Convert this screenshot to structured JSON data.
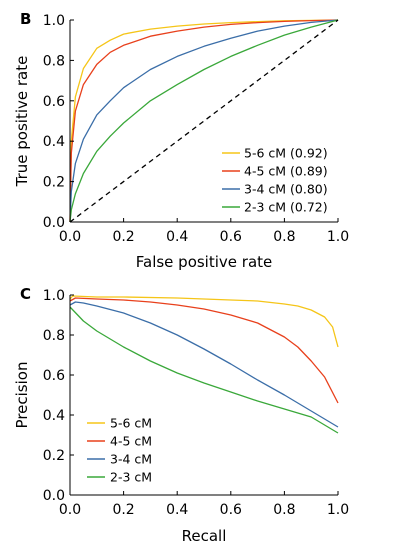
{
  "chart_data": [
    {
      "type": "line",
      "panel_label": "B",
      "xlabel": "False positive rate",
      "ylabel": "True positive rate",
      "xlim": [
        0,
        1
      ],
      "ylim": [
        0,
        1
      ],
      "xticks": [
        "0.0",
        "0.2",
        "0.4",
        "0.6",
        "0.8",
        "1.0"
      ],
      "yticks": [
        "0.0",
        "0.2",
        "0.4",
        "0.6",
        "0.8",
        "1.0"
      ],
      "grid": false,
      "legend": "bottom-right",
      "diagonal_reference": true,
      "series": [
        {
          "name": "5-6 cM (0.92)",
          "color": "#f5c518",
          "x": [
            0,
            0.005,
            0.02,
            0.05,
            0.1,
            0.15,
            0.2,
            0.3,
            0.4,
            0.5,
            0.6,
            0.7,
            0.8,
            0.9,
            1.0
          ],
          "y": [
            0,
            0.4,
            0.62,
            0.76,
            0.86,
            0.9,
            0.93,
            0.955,
            0.97,
            0.98,
            0.987,
            0.992,
            0.996,
            0.998,
            1.0
          ]
        },
        {
          "name": "4-5 cM (0.89)",
          "color": "#e8401c",
          "x": [
            0,
            0.005,
            0.02,
            0.05,
            0.1,
            0.15,
            0.2,
            0.3,
            0.4,
            0.5,
            0.6,
            0.7,
            0.8,
            0.9,
            1.0
          ],
          "y": [
            0,
            0.34,
            0.55,
            0.68,
            0.78,
            0.84,
            0.875,
            0.92,
            0.945,
            0.965,
            0.978,
            0.987,
            0.993,
            0.997,
            1.0
          ]
        },
        {
          "name": "3-4 cM (0.80)",
          "color": "#3b6ea8",
          "x": [
            0,
            0.005,
            0.02,
            0.05,
            0.1,
            0.15,
            0.2,
            0.3,
            0.4,
            0.5,
            0.6,
            0.7,
            0.8,
            0.9,
            1.0
          ],
          "y": [
            0,
            0.15,
            0.29,
            0.41,
            0.53,
            0.6,
            0.665,
            0.755,
            0.82,
            0.87,
            0.91,
            0.945,
            0.97,
            0.988,
            1.0
          ]
        },
        {
          "name": "2-3 cM (0.72)",
          "color": "#3aa83a",
          "x": [
            0,
            0.005,
            0.02,
            0.05,
            0.1,
            0.15,
            0.2,
            0.3,
            0.4,
            0.5,
            0.6,
            0.7,
            0.8,
            0.9,
            1.0
          ],
          "y": [
            0,
            0.06,
            0.14,
            0.24,
            0.35,
            0.425,
            0.49,
            0.6,
            0.68,
            0.755,
            0.82,
            0.875,
            0.925,
            0.965,
            1.0
          ]
        }
      ]
    },
    {
      "type": "line",
      "panel_label": "C",
      "xlabel": "Recall",
      "ylabel": "Precision",
      "xlim": [
        0,
        1
      ],
      "ylim": [
        0,
        1
      ],
      "xticks": [
        "0.0",
        "0.2",
        "0.4",
        "0.6",
        "0.8",
        "1.0"
      ],
      "yticks": [
        "0.0",
        "0.2",
        "0.4",
        "0.6",
        "0.8",
        "1.0"
      ],
      "grid": false,
      "legend": "bottom-left",
      "series": [
        {
          "name": "5-6 cM",
          "color": "#f5c518",
          "x": [
            0,
            0.01,
            0.1,
            0.2,
            0.4,
            0.6,
            0.7,
            0.8,
            0.85,
            0.9,
            0.95,
            0.98,
            1.0
          ],
          "y": [
            0.98,
            0.995,
            0.99,
            0.99,
            0.985,
            0.975,
            0.97,
            0.955,
            0.945,
            0.925,
            0.89,
            0.84,
            0.74
          ]
        },
        {
          "name": "4-5 cM",
          "color": "#e8401c",
          "x": [
            0,
            0.02,
            0.1,
            0.2,
            0.3,
            0.4,
            0.5,
            0.6,
            0.7,
            0.8,
            0.85,
            0.9,
            0.95,
            1.0
          ],
          "y": [
            0.97,
            0.985,
            0.98,
            0.975,
            0.965,
            0.95,
            0.93,
            0.9,
            0.86,
            0.79,
            0.74,
            0.67,
            0.59,
            0.46
          ]
        },
        {
          "name": "3-4 cM",
          "color": "#3b6ea8",
          "x": [
            0,
            0.02,
            0.05,
            0.1,
            0.2,
            0.3,
            0.4,
            0.5,
            0.6,
            0.7,
            0.8,
            0.9,
            1.0
          ],
          "y": [
            0.95,
            0.965,
            0.96,
            0.945,
            0.91,
            0.86,
            0.8,
            0.73,
            0.655,
            0.575,
            0.5,
            0.42,
            0.34
          ]
        },
        {
          "name": "2-3 cM",
          "color": "#3aa83a",
          "x": [
            0,
            0.05,
            0.1,
            0.2,
            0.3,
            0.4,
            0.5,
            0.6,
            0.7,
            0.8,
            0.9,
            1.0
          ],
          "y": [
            0.94,
            0.87,
            0.82,
            0.74,
            0.67,
            0.61,
            0.56,
            0.515,
            0.47,
            0.43,
            0.39,
            0.31
          ]
        }
      ]
    }
  ]
}
